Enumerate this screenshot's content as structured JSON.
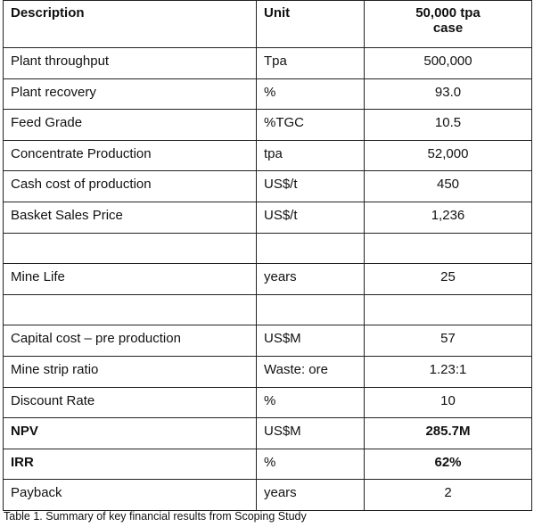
{
  "table": {
    "header": [
      "Description",
      "Unit",
      "50,000 tpa case"
    ],
    "rows": [
      [
        "Plant throughput",
        "Tpa",
        "500,000"
      ],
      [
        "Plant recovery",
        "%",
        "93.0"
      ],
      [
        "Feed Grade",
        "%TGC",
        "10.5"
      ],
      [
        "Concentrate Production",
        "tpa",
        "52,000"
      ],
      [
        "Cash cost of production",
        "US$/t",
        "450"
      ],
      [
        "Basket Sales Price",
        "US$/t",
        "1,236"
      ],
      null,
      [
        "Mine Life",
        "years",
        "25"
      ],
      null,
      [
        "Capital cost – pre production",
        "US$M",
        "57"
      ],
      [
        "Mine strip ratio",
        "Waste: ore",
        "1.23:1"
      ],
      [
        "Discount Rate",
        "%",
        "10"
      ],
      [
        "NPV",
        "US$M",
        "285.7M"
      ],
      [
        "IRR",
        "%",
        "62%"
      ],
      [
        "Payback",
        "years",
        "2"
      ]
    ],
    "caption": "Table 1. Summary of key financial results from Scoping Study"
  }
}
